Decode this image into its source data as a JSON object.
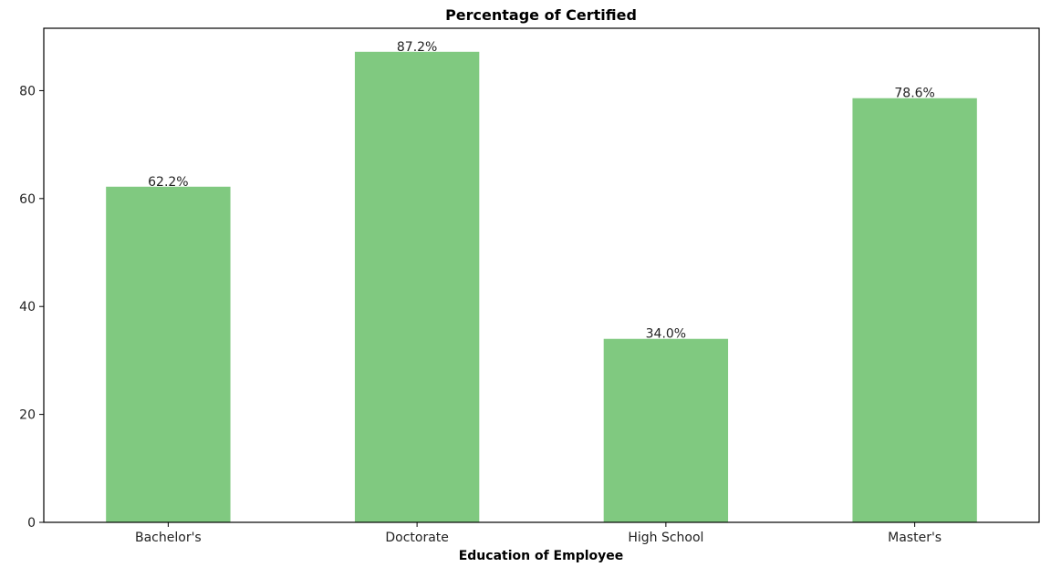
{
  "chart_data": {
    "type": "bar",
    "title": "Percentage of Certified",
    "xlabel": "Education of Employee",
    "ylabel": "",
    "categories": [
      "Bachelor's",
      "Doctorate",
      "High School",
      "Master's"
    ],
    "values": [
      62.2,
      87.2,
      34.0,
      78.6
    ],
    "data_labels": [
      "62.2%",
      "87.2%",
      "34.0%",
      "78.6%"
    ],
    "ylim": [
      0,
      91.56
    ],
    "yticks": [
      0,
      20,
      40,
      60,
      80
    ],
    "grid": false,
    "legend": "none",
    "bar_color": "#80c980"
  }
}
